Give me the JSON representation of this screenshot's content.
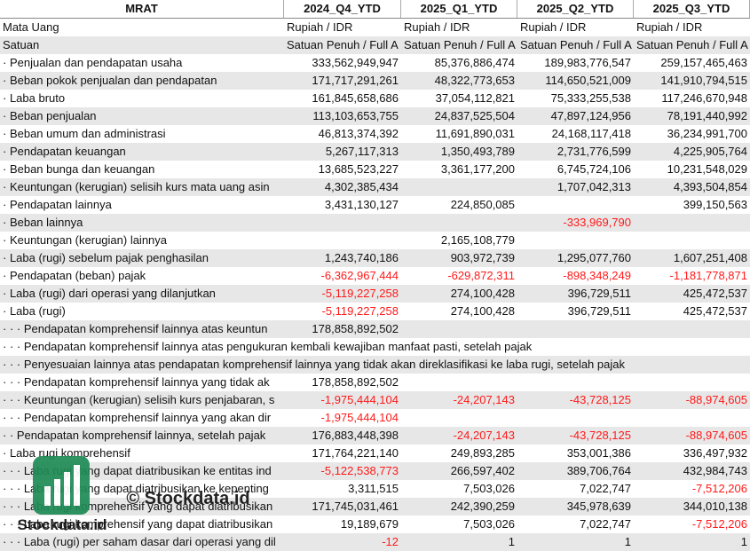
{
  "table": {
    "header": [
      "MRAT",
      "2024_Q4_YTD",
      "2025_Q1_YTD",
      "2025_Q2_YTD",
      "2025_Q3_YTD"
    ],
    "rows": [
      [
        "Mata Uang",
        "Rupiah / IDR",
        "Rupiah / IDR",
        "Rupiah / IDR",
        "Rupiah / IDR"
      ],
      [
        "Satuan",
        "Satuan Penuh / Full A",
        "Satuan Penuh / Full A",
        "Satuan Penuh / Full A",
        "Satuan Penuh / Full A"
      ],
      [
        "· Penjualan dan pendapatan usaha",
        "333,562,949,947",
        "85,376,886,474",
        "189,983,776,547",
        "259,157,465,463"
      ],
      [
        "· Beban pokok penjualan dan pendapatan",
        "171,717,291,261",
        "48,322,773,653",
        "114,650,521,009",
        "141,910,794,515"
      ],
      [
        "· Laba bruto",
        "161,845,658,686",
        "37,054,112,821",
        "75,333,255,538",
        "117,246,670,948"
      ],
      [
        "· Beban penjualan",
        "113,103,653,755",
        "24,837,525,504",
        "47,897,124,956",
        "78,191,440,992"
      ],
      [
        "· Beban umum dan administrasi",
        "46,813,374,392",
        "11,691,890,031",
        "24,168,117,418",
        "36,234,991,700"
      ],
      [
        "· Pendapatan keuangan",
        "5,267,117,313",
        "1,350,493,789",
        "2,731,776,599",
        "4,225,905,764"
      ],
      [
        "· Beban bunga dan keuangan",
        "13,685,523,227",
        "3,361,177,200",
        "6,745,724,106",
        "10,231,548,029"
      ],
      [
        "· Keuntungan (kerugian) selisih kurs mata uang asin",
        "4,302,385,434",
        null,
        "1,707,042,313",
        "4,393,504,854"
      ],
      [
        "· Pendapatan lainnya",
        "3,431,130,127",
        "224,850,085",
        null,
        "399,150,563"
      ],
      [
        "· Beban lainnya",
        null,
        null,
        "-333,969,790",
        null
      ],
      [
        "· Keuntungan (kerugian) lainnya",
        null,
        "2,165,108,779",
        null,
        null
      ],
      [
        "· Laba (rugi) sebelum pajak penghasilan",
        "1,243,740,186",
        "903,972,739",
        "1,295,077,760",
        "1,607,251,408"
      ],
      [
        "· Pendapatan (beban) pajak",
        "-6,362,967,444",
        "-629,872,311",
        "-898,348,249",
        "-1,181,778,871"
      ],
      [
        "· Laba (rugi) dari operasi yang dilanjutkan",
        "-5,119,227,258",
        "274,100,428",
        "396,729,511",
        "425,472,537"
      ],
      [
        "· Laba (rugi)",
        "-5,119,227,258",
        "274,100,428",
        "396,729,511",
        "425,472,537"
      ],
      [
        "· · · Pendapatan komprehensif lainnya atas keuntun",
        "178,858,892,502",
        null,
        null,
        null
      ],
      [
        "· · · Pendapatan komprehensif lainnya atas pengukuran kembali kewajiban manfaat pasti, setelah pajak",
        null,
        null,
        null,
        null
      ],
      [
        "· · · Penyesuaian lainnya atas pendapatan komprehensif lainnya yang tidak akan direklasifikasi ke laba rugi, setelah pajak",
        null,
        null,
        null,
        null
      ],
      [
        "· · · Pendapatan komprehensif lainnya yang tidak ak",
        "178,858,892,502",
        null,
        null,
        null
      ],
      [
        "· · · Keuntungan (kerugian) selisih kurs penjabaran, s",
        "-1,975,444,104",
        "-24,207,143",
        "-43,728,125",
        "-88,974,605"
      ],
      [
        "· · · Pendapatan komprehensif lainnya yang akan dir",
        "-1,975,444,104",
        null,
        null,
        null
      ],
      [
        "· · Pendapatan komprehensif lainnya, setelah pajak",
        "176,883,448,398",
        "-24,207,143",
        "-43,728,125",
        "-88,974,605"
      ],
      [
        "· Laba rugi komprehensif",
        "171,764,221,140",
        "249,893,285",
        "353,001,386",
        "336,497,932"
      ],
      [
        "· · · Laba rugi yang dapat diatribusikan ke entitas ind",
        "-5,122,538,773",
        "266,597,402",
        "389,706,764",
        "432,984,743"
      ],
      [
        "· · · Laba rugi yang dapat diatribusikan ke kepenting",
        "3,311,515",
        "7,503,026",
        "7,022,747",
        "-7,512,206"
      ],
      [
        "· · · Laba rugi komprehensif yang dapat diatribusikan",
        "171,745,031,461",
        "242,390,259",
        "345,978,639",
        "344,010,138"
      ],
      [
        "· · · Laba rugi komprehensif yang dapat diatribusikan",
        "19,189,679",
        "7,503,026",
        "7,022,747",
        "-7,512,206"
      ],
      [
        "· · · Laba (rugi) per saham dasar dari operasi yang dil",
        "-12",
        "1",
        "1",
        "1"
      ]
    ]
  },
  "watermark": {
    "text": "© Stockdata.id",
    "logo_text": "Stockdata.id"
  }
}
